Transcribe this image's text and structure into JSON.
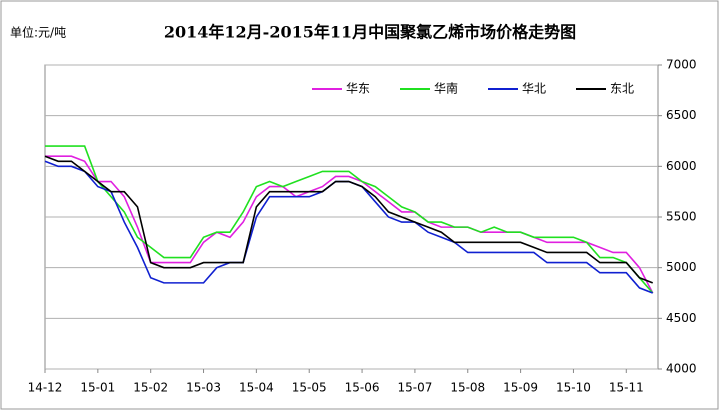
{
  "chart_data": {
    "type": "line",
    "title": "2014年12月-2015年11月中国聚氯乙烯市场价格走势图",
    "unit_label": "单位:元/吨",
    "x": [
      0,
      0.25,
      0.5,
      0.75,
      1,
      1.25,
      1.5,
      1.75,
      2,
      2.25,
      2.5,
      2.75,
      3,
      3.25,
      3.5,
      3.75,
      4,
      4.25,
      4.5,
      4.75,
      5,
      5.25,
      5.5,
      5.75,
      6,
      6.25,
      6.5,
      6.75,
      7,
      7.25,
      7.5,
      7.75,
      8,
      8.25,
      8.5,
      8.75,
      9,
      9.25,
      9.5,
      9.75,
      10,
      10.25,
      10.5,
      10.75,
      11,
      11.25,
      11.5
    ],
    "xlim": [
      0,
      11.6
    ],
    "xticks": [
      {
        "value": 0,
        "label": "14-12"
      },
      {
        "value": 1,
        "label": "15-01"
      },
      {
        "value": 2,
        "label": "15-02"
      },
      {
        "value": 3,
        "label": "15-03"
      },
      {
        "value": 4,
        "label": "15-04"
      },
      {
        "value": 5,
        "label": "15-05"
      },
      {
        "value": 6,
        "label": "15-06"
      },
      {
        "value": 7,
        "label": "15-07"
      },
      {
        "value": 8,
        "label": "15-08"
      },
      {
        "value": 9,
        "label": "15-09"
      },
      {
        "value": 10,
        "label": "15-10"
      },
      {
        "value": 11,
        "label": "15-11"
      }
    ],
    "ylim": [
      4000,
      7000
    ],
    "yticks": [
      4000,
      4500,
      5000,
      5500,
      6000,
      6500,
      7000
    ],
    "grid": true,
    "legend": "top-right",
    "series": [
      {
        "name": "华东",
        "color": "#e020e0",
        "values": [
          6100,
          6100,
          6100,
          6050,
          5850,
          5850,
          5700,
          5400,
          5050,
          5050,
          5050,
          5050,
          5250,
          5350,
          5300,
          5450,
          5700,
          5800,
          5800,
          5700,
          5750,
          5800,
          5900,
          5900,
          5850,
          5750,
          5650,
          5550,
          5550,
          5450,
          5400,
          5400,
          5400,
          5350,
          5350,
          5350,
          5350,
          5300,
          5250,
          5250,
          5250,
          5250,
          5200,
          5150,
          5150,
          5000,
          4750
        ]
      },
      {
        "name": "华南",
        "color": "#20e020",
        "values": [
          6200,
          6200,
          6200,
          6200,
          5850,
          5700,
          5550,
          5300,
          5200,
          5100,
          5100,
          5100,
          5300,
          5350,
          5350,
          5550,
          5800,
          5850,
          5800,
          5850,
          5900,
          5950,
          5950,
          5950,
          5850,
          5800,
          5700,
          5600,
          5550,
          5450,
          5450,
          5400,
          5400,
          5350,
          5400,
          5350,
          5350,
          5300,
          5300,
          5300,
          5300,
          5250,
          5100,
          5100,
          5050,
          4900,
          4750
        ]
      },
      {
        "name": "华北",
        "color": "#1020d0",
        "values": [
          6050,
          6000,
          6000,
          5950,
          5800,
          5750,
          5450,
          5200,
          4900,
          4850,
          4850,
          4850,
          4850,
          5000,
          5050,
          5050,
          5500,
          5700,
          5700,
          5700,
          5700,
          5750,
          5850,
          5850,
          5800,
          5650,
          5500,
          5450,
          5450,
          5350,
          5300,
          5250,
          5150,
          5150,
          5150,
          5150,
          5150,
          5150,
          5050,
          5050,
          5050,
          5050,
          4950,
          4950,
          4950,
          4800,
          4750
        ]
      },
      {
        "name": "东北",
        "color": "#000000",
        "values": [
          6100,
          6050,
          6050,
          5950,
          5850,
          5750,
          5750,
          5600,
          5050,
          5000,
          5000,
          5000,
          5050,
          5050,
          5050,
          5050,
          5600,
          5750,
          5750,
          5750,
          5750,
          5750,
          5850,
          5850,
          5800,
          5700,
          5550,
          5500,
          5450,
          5400,
          5350,
          5250,
          5250,
          5250,
          5250,
          5250,
          5250,
          5200,
          5150,
          5150,
          5150,
          5150,
          5050,
          5050,
          5050,
          4900,
          4850
        ]
      }
    ]
  }
}
